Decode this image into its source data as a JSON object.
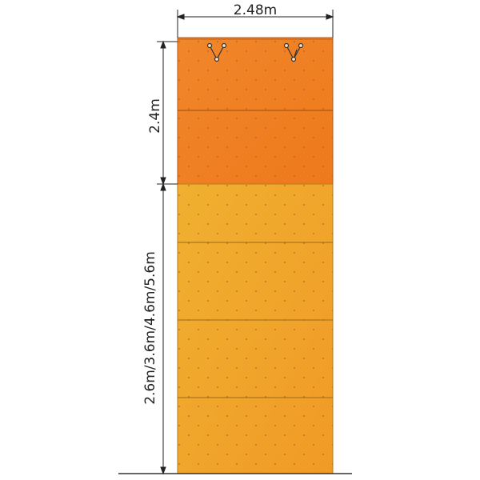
{
  "dimensions": {
    "width": "2.48m",
    "top_height": "2.4m",
    "bottom_height": "2.6m/3.6m/4.6m/5.6m"
  }
}
